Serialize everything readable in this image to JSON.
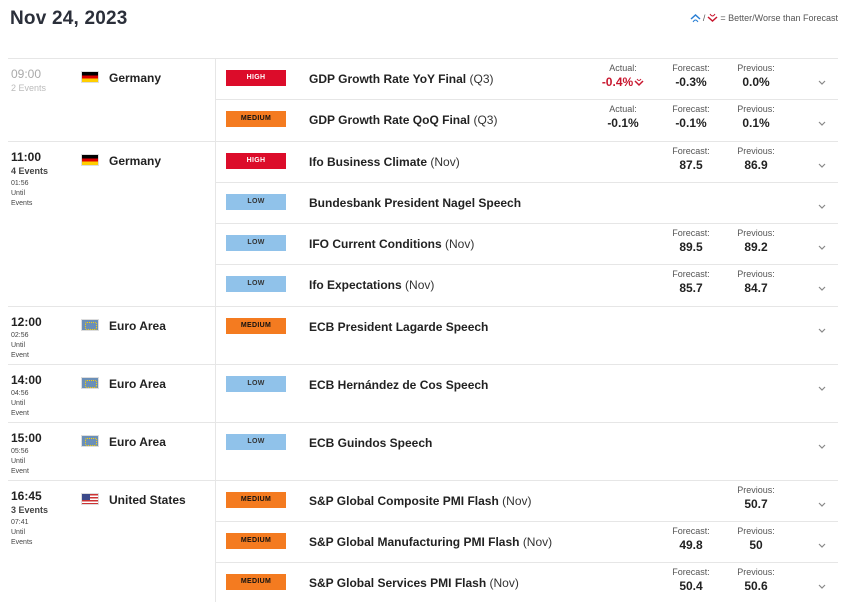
{
  "header": {
    "date": "Nov 24, 2023",
    "legend_text": "= Better/Worse than Forecast",
    "legend_sep": "/"
  },
  "labels": {
    "actual": "Actual:",
    "forecast": "Forecast:",
    "previous": "Previous:",
    "until": "Until",
    "event": "Event",
    "events": "Events"
  },
  "colors": {
    "high": "#dc0c2a",
    "medium": "#f47b20",
    "low": "#90c2ea",
    "better": "#2a7fd4",
    "worse": "#c8162e"
  },
  "groups": [
    {
      "time": "09:00",
      "events_count": "2 Events",
      "country": "Germany",
      "flag": "de",
      "past": true,
      "rows": [
        {
          "impact": "HIGH",
          "name": "GDP Growth Rate YoY Final",
          "period": "(Q3)",
          "actual": "-0.4%",
          "actual_flag": "worse",
          "forecast": "-0.3%",
          "previous": "0.0%"
        },
        {
          "impact": "MEDIUM",
          "name": "GDP Growth Rate QoQ Final",
          "period": "(Q3)",
          "actual": "-0.1%",
          "forecast": "-0.1%",
          "previous": "0.1%"
        }
      ]
    },
    {
      "time": "11:00",
      "events_count": "4 Events",
      "countdown": "01:56",
      "until_lines": [
        "Until",
        "Events"
      ],
      "country": "Germany",
      "flag": "de",
      "rows": [
        {
          "impact": "HIGH",
          "name": "Ifo Business Climate",
          "period": "(Nov)",
          "forecast": "87.5",
          "previous": "86.9"
        },
        {
          "impact": "LOW",
          "name": "Bundesbank President Nagel Speech",
          "period": ""
        },
        {
          "impact": "LOW",
          "name": "IFO Current Conditions",
          "period": "(Nov)",
          "forecast": "89.5",
          "previous": "89.2"
        },
        {
          "impact": "LOW",
          "name": "Ifo Expectations",
          "period": "(Nov)",
          "forecast": "85.7",
          "previous": "84.7"
        }
      ]
    },
    {
      "time": "12:00",
      "countdown": "02:56",
      "until_lines": [
        "Until",
        "Event"
      ],
      "country": "Euro Area",
      "flag": "eu",
      "rows": [
        {
          "impact": "MEDIUM",
          "name": "ECB President Lagarde Speech",
          "period": "",
          "tall": true
        }
      ]
    },
    {
      "time": "14:00",
      "countdown": "04:56",
      "until_lines": [
        "Until",
        "Event"
      ],
      "country": "Euro Area",
      "flag": "eu",
      "rows": [
        {
          "impact": "LOW",
          "name": "ECB Hernández de Cos Speech",
          "period": "",
          "tall": true
        }
      ]
    },
    {
      "time": "15:00",
      "countdown": "05:56",
      "until_lines": [
        "Until",
        "Event"
      ],
      "country": "Euro Area",
      "flag": "eu",
      "rows": [
        {
          "impact": "LOW",
          "name": "ECB Guindos Speech",
          "period": "",
          "tall": true
        }
      ]
    },
    {
      "time": "16:45",
      "events_count": "3 Events",
      "countdown": "07:41",
      "until_lines": [
        "Until",
        "Events"
      ],
      "country": "United States",
      "flag": "us",
      "rows": [
        {
          "impact": "MEDIUM",
          "name": "S&P Global Composite PMI Flash",
          "period": "(Nov)",
          "previous": "50.7"
        },
        {
          "impact": "MEDIUM",
          "name": "S&P Global Manufacturing PMI Flash",
          "period": "(Nov)",
          "forecast": "49.8",
          "previous": "50"
        },
        {
          "impact": "MEDIUM",
          "name": "S&P Global Services PMI Flash",
          "period": "(Nov)",
          "forecast": "50.4",
          "previous": "50.6"
        }
      ]
    }
  ]
}
